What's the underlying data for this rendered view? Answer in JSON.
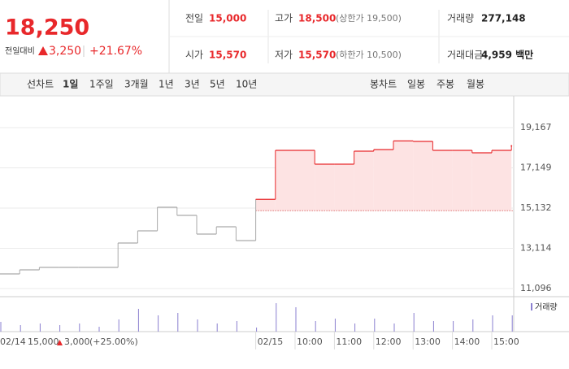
{
  "header": {
    "price": "18,250",
    "change_label": "전일대비",
    "change": "3,250",
    "change_pct": "+21.67%",
    "stats": [
      [
        {
          "label": "전일",
          "value": "15,000"
        },
        {
          "label": "고가",
          "value": "18,500",
          "note": "(상한가 19,500)"
        },
        {
          "label": "거래량",
          "value": "277,148"
        }
      ],
      [
        {
          "label": "시가",
          "value": "15,570"
        },
        {
          "label": "저가",
          "value": "15,570",
          "note": "(하한가 10,500)"
        },
        {
          "label": "거래대금",
          "value": "4,959 백만"
        }
      ]
    ]
  },
  "tabs": {
    "line_label": "선차트",
    "line_periods": [
      "1일",
      "1주일",
      "3개월",
      "1년",
      "3년",
      "5년",
      "10년"
    ],
    "active": 0,
    "candle_label": "봉차트",
    "candle_periods": [
      "일봉",
      "주봉",
      "월봉"
    ]
  },
  "chart_data": {
    "type": "step-line",
    "categories": [
      "02/14",
      null,
      null,
      null,
      null,
      null,
      null,
      null,
      null,
      null,
      null,
      null,
      null,
      "02/15",
      null,
      "10:00",
      null,
      "11:00",
      null,
      "12:00",
      null,
      "13:00",
      null,
      "14:00",
      null,
      "15:00",
      null
    ],
    "series": [
      {
        "color": "#aaaaaa",
        "values": [
          11830,
          12034,
          12156,
          12156,
          12156,
          12156,
          13379,
          13990,
          15173,
          14765,
          13827,
          14194,
          13501,
          null,
          null,
          null,
          null,
          null,
          null,
          null,
          null,
          null,
          null,
          null,
          null,
          null,
          null
        ]
      },
      {
        "color": "#e8282b",
        "values": [
          null,
          null,
          null,
          null,
          null,
          null,
          null,
          null,
          null,
          null,
          null,
          null,
          null,
          15570,
          18026,
          18026,
          17333,
          17333,
          17985,
          18067,
          18500,
          18474,
          18026,
          18026,
          17904,
          18026,
          18250
        ]
      }
    ],
    "base": 15000,
    "ylim": [
      10688,
      20757
    ],
    "yticks": [
      {
        "value": 11096,
        "label": "11,096"
      },
      {
        "value": 13114,
        "label": "13,114"
      },
      {
        "value": 15132,
        "label": "15,132"
      },
      {
        "value": 17149,
        "label": "17,149"
      },
      {
        "value": 19167,
        "label": "19,167"
      }
    ],
    "grid": true,
    "volume": {
      "name": "거래량",
      "color": "#8a7fd0",
      "lim": [
        0,
        40000
      ],
      "values": [
        12000,
        8000,
        10000,
        8000,
        10000,
        6000,
        15000,
        28000,
        20000,
        23000,
        15000,
        10000,
        13000,
        5000,
        35000,
        30000,
        13000,
        16000,
        10000,
        16000,
        10000,
        23000,
        13000,
        13000,
        15000,
        20000,
        20000
      ]
    },
    "prev_close": "15,000",
    "prev_change": "3,000",
    "prev_pct": "(+25.00%)"
  }
}
